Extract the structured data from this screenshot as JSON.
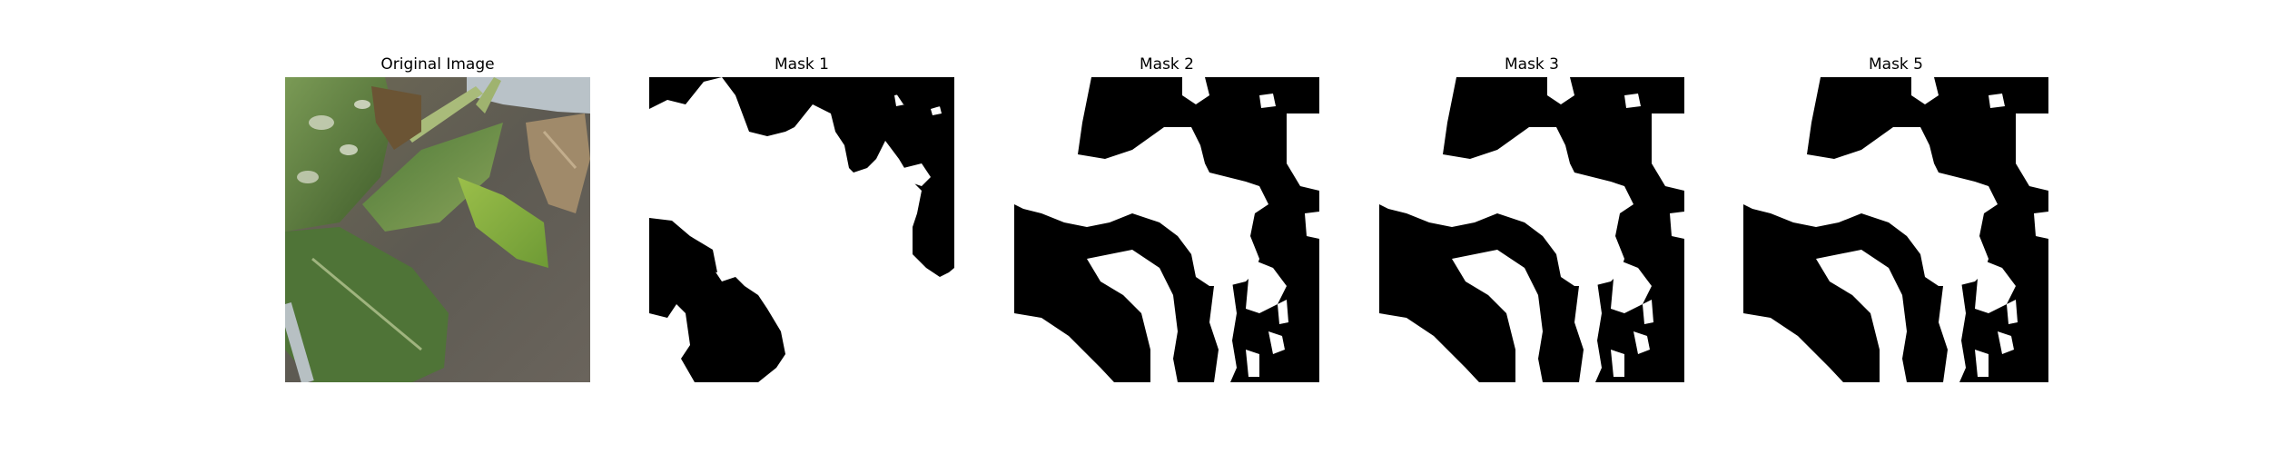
{
  "panels": [
    {
      "title": "Original Image"
    },
    {
      "title": "Mask 1"
    },
    {
      "title": "Mask 2"
    },
    {
      "title": "Mask 3"
    },
    {
      "title": "Mask 5"
    }
  ]
}
